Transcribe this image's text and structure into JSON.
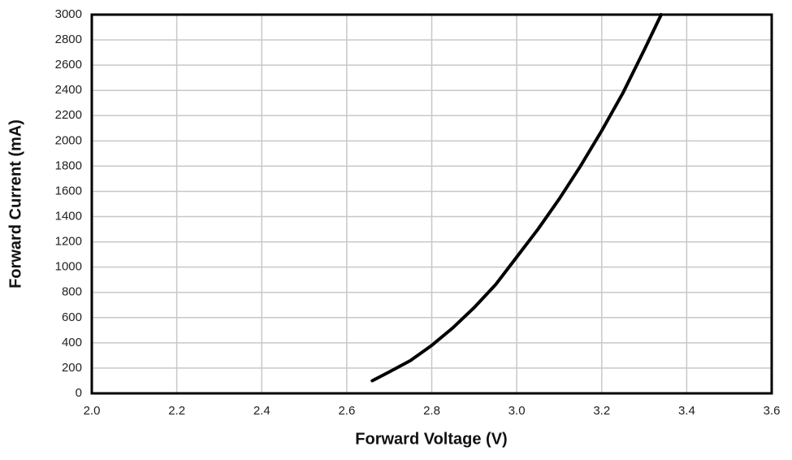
{
  "chart_data": {
    "type": "line",
    "x_label": "Forward Voltage (V)",
    "y_label": "Forward Current (mA)",
    "x": [
      2.66,
      2.7,
      2.75,
      2.8,
      2.85,
      2.9,
      2.95,
      3.0,
      3.05,
      3.1,
      3.15,
      3.2,
      3.25,
      3.3,
      3.34
    ],
    "series": [
      {
        "color": "#000000",
        "values": [
          100,
          170,
          260,
          380,
          520,
          680,
          860,
          1080,
          1300,
          1540,
          1800,
          2080,
          2380,
          2720,
          3000
        ]
      }
    ],
    "xlim": [
      2.0,
      3.6
    ],
    "xticks": [
      {
        "value": 2,
        "label": "2.0"
      },
      2.2,
      2.4,
      2.6,
      2.8,
      {
        "value": 3,
        "label": "3.0"
      },
      3.2,
      3.4,
      3.6
    ],
    "ylim": [
      0,
      3000
    ],
    "yticks": [
      0,
      200,
      400,
      600,
      800,
      1000,
      1200,
      1400,
      1600,
      1800,
      2000,
      2200,
      2400,
      2600,
      2800,
      3000
    ],
    "grid": true
  }
}
